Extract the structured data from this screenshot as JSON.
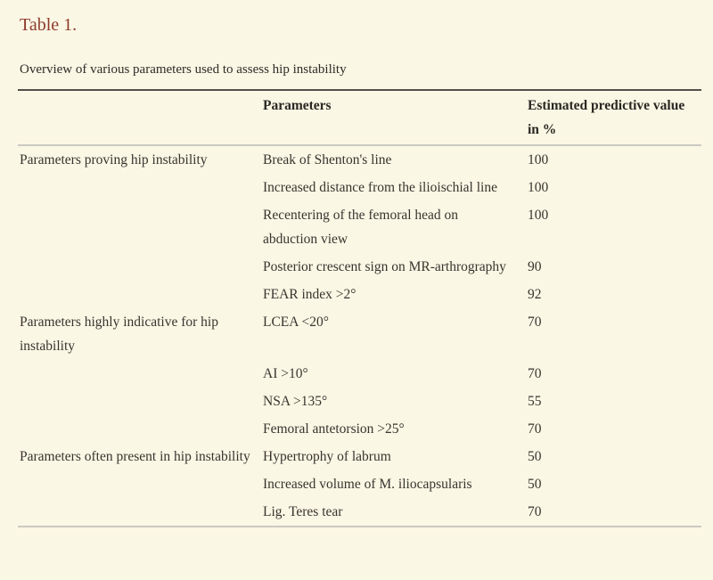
{
  "page": {
    "background_color": "#fbf7e5",
    "title_color": "#8e3b2a"
  },
  "table": {
    "title": "Table 1.",
    "caption": "Overview of various parameters used to assess hip instability",
    "columns": [
      "",
      "Parameters",
      "Estimated predictive value in %"
    ],
    "groups": [
      {
        "label": "Parameters proving hip instability",
        "rows": [
          {
            "parameter": "Break of Shenton's line",
            "value": "100"
          },
          {
            "parameter": "Increased distance from the ilioischial line",
            "value": "100"
          },
          {
            "parameter": "Recentering of the femoral head on abduction view",
            "value": "100"
          },
          {
            "parameter": "Posterior crescent sign on MR-arthrography",
            "value": "90"
          },
          {
            "parameter": "FEAR index >2°",
            "value": "92"
          }
        ]
      },
      {
        "label": "Parameters highly indicative for hip instability",
        "rows": [
          {
            "parameter": "LCEA <20°",
            "value": "70"
          },
          {
            "parameter": "AI >10°",
            "value": "70"
          },
          {
            "parameter": "NSA >135°",
            "value": "55"
          },
          {
            "parameter": "Femoral antetorsion >25°",
            "value": "70"
          }
        ]
      },
      {
        "label": "Parameters often present in hip instability",
        "rows": [
          {
            "parameter": "Hypertrophy of labrum",
            "value": "50"
          },
          {
            "parameter": "Increased volume of M. iliocapsularis",
            "value": "50"
          },
          {
            "parameter": "Lig. Teres tear",
            "value": "70"
          }
        ]
      }
    ]
  }
}
